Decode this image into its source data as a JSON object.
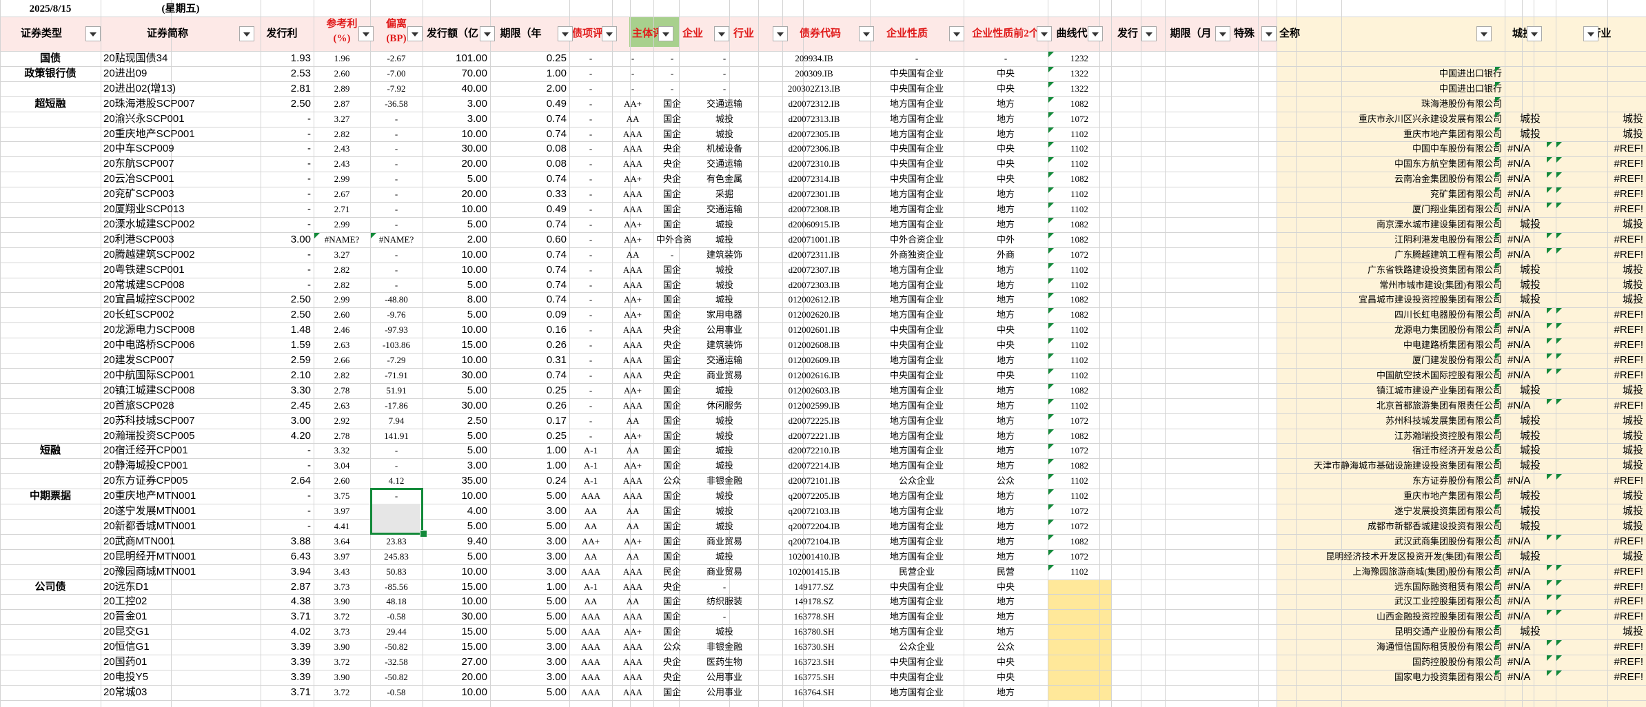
{
  "date_label": "2025/8/15",
  "weekday_label": "(星期五)",
  "headers": [
    "证券类型",
    "证券简称",
    "发行利",
    "参考利率(%)",
    "偏离(BP)",
    "发行额（亿",
    "期限（年",
    "债项评级",
    "主体评级",
    "企业",
    "行业",
    "债券代码",
    "企业性质",
    "企业性质前2个",
    "曲线代",
    "发行",
    "期限（月",
    "特殊",
    "全称",
    "城投",
    "行业"
  ],
  "header_ref_top": "参考利",
  "header_ref_bottom": "(%)",
  "header_dev_top": "偏离",
  "header_dev_bottom": "(BP)",
  "categories": [
    {
      "row": 0,
      "label": "国债"
    },
    {
      "row": 1,
      "label": "政策银行债"
    },
    {
      "row": 3,
      "label": "超短融"
    },
    {
      "row": 26,
      "label": "短融"
    },
    {
      "row": 29,
      "label": "中期票据"
    },
    {
      "row": 35,
      "label": "公司债"
    }
  ],
  "rows": [
    [
      "20贴现国债34",
      "1.93",
      "1.96",
      "-2.67",
      "101.00",
      "0.25",
      "-",
      "-",
      "-",
      "-",
      "209934.IB",
      "-",
      "-",
      "1232",
      "",
      "",
      ""
    ],
    [
      "20进出09",
      "2.53",
      "2.60",
      "-7.00",
      "70.00",
      "1.00",
      "-",
      "-",
      "-",
      "-",
      "200309.IB",
      "中央国有企业",
      "中央",
      "1322",
      "中国进出口银行",
      "",
      ""
    ],
    [
      "20进出02(增13)",
      "2.81",
      "2.89",
      "-7.92",
      "40.00",
      "2.00",
      "-",
      "-",
      "-",
      "-",
      "200302Z13.IB",
      "中央国有企业",
      "中央",
      "1322",
      "中国进出口银行",
      "",
      ""
    ],
    [
      "20珠海港股SCP007",
      "2.50",
      "2.87",
      "-36.58",
      "3.00",
      "0.49",
      "-",
      "AA+",
      "国企",
      "交通运输",
      "d20072312.IB",
      "地方国有企业",
      "地方",
      "1082",
      "珠海港股份有限公司",
      "",
      ""
    ],
    [
      "20渝兴永SCP001",
      "-",
      "3.27",
      "-",
      "3.00",
      "0.74",
      "-",
      "AA",
      "国企",
      "城投",
      "d20072313.IB",
      "地方国有企业",
      "地方",
      "1072",
      "重庆市永川区兴永建设发展有限公司",
      "城投",
      "城投"
    ],
    [
      "20重庆地产SCP001",
      "-",
      "2.82",
      "-",
      "10.00",
      "0.74",
      "-",
      "AAA",
      "国企",
      "城投",
      "d20072305.IB",
      "地方国有企业",
      "地方",
      "1102",
      "重庆市地产集团有限公司",
      "城投",
      "城投"
    ],
    [
      "20中车SCP009",
      "-",
      "2.43",
      "-",
      "30.00",
      "0.08",
      "-",
      "AAA",
      "央企",
      "机械设备",
      "d20072306.IB",
      "中央国有企业",
      "中央",
      "1102",
      "中国中车股份有限公司",
      "#N/A",
      "#REF!"
    ],
    [
      "20东航SCP007",
      "-",
      "2.43",
      "-",
      "20.00",
      "0.08",
      "-",
      "AAA",
      "央企",
      "交通运输",
      "d20072310.IB",
      "中央国有企业",
      "中央",
      "1102",
      "中国东方航空集团有限公司",
      "#N/A",
      "#REF!"
    ],
    [
      "20云冶SCP001",
      "-",
      "2.99",
      "-",
      "5.00",
      "0.74",
      "-",
      "AA+",
      "央企",
      "有色金属",
      "d20072314.IB",
      "中央国有企业",
      "中央",
      "1082",
      "云南冶金集团股份有限公司",
      "#N/A",
      "#REF!"
    ],
    [
      "20兖矿SCP003",
      "-",
      "2.67",
      "-",
      "20.00",
      "0.33",
      "-",
      "AAA",
      "国企",
      "采掘",
      "d20072301.IB",
      "地方国有企业",
      "地方",
      "1102",
      "兖矿集团有限公司",
      "#N/A",
      "#REF!"
    ],
    [
      "20厦翔业SCP013",
      "-",
      "2.71",
      "-",
      "10.00",
      "0.49",
      "-",
      "AAA",
      "国企",
      "交通运输",
      "d20072308.IB",
      "地方国有企业",
      "地方",
      "1102",
      "厦门翔业集团有限公司",
      "#N/A",
      "#REF!"
    ],
    [
      "20溧水城建SCP002",
      "-",
      "2.99",
      "-",
      "5.00",
      "0.74",
      "-",
      "AA+",
      "国企",
      "城投",
      "d20060915.IB",
      "地方国有企业",
      "地方",
      "1082",
      "南京溧水城市建设集团有限公司",
      "城投",
      "城投"
    ],
    [
      "20利港SCP003",
      "3.00",
      "#NAME?",
      "#NAME?",
      "2.00",
      "0.60",
      "-",
      "AA+",
      "中外合资",
      "城投",
      "d20071001.IB",
      "中外合资企业",
      "中外",
      "1082",
      "江阴利港发电股份有限公司",
      "#N/A",
      "#REF!"
    ],
    [
      "20腾越建筑SCP002",
      "-",
      "3.27",
      "-",
      "10.00",
      "0.74",
      "-",
      "AA",
      "-",
      "建筑装饰",
      "d20072311.IB",
      "外商独资企业",
      "外商",
      "1072",
      "广东腾越建筑工程有限公司",
      "#N/A",
      "#REF!"
    ],
    [
      "20粤铁建SCP001",
      "-",
      "2.82",
      "-",
      "10.00",
      "0.74",
      "-",
      "AAA",
      "国企",
      "城投",
      "d20072307.IB",
      "地方国有企业",
      "地方",
      "1102",
      "广东省铁路建设投资集团有限公司",
      "城投",
      "城投"
    ],
    [
      "20常城建SCP008",
      "-",
      "2.82",
      "-",
      "5.00",
      "0.74",
      "-",
      "AAA",
      "国企",
      "城投",
      "d20072303.IB",
      "地方国有企业",
      "地方",
      "1102",
      "常州市城市建设(集团)有限公司",
      "城投",
      "城投"
    ],
    [
      "20宜昌城控SCP002",
      "2.50",
      "2.99",
      "-48.80",
      "8.00",
      "0.74",
      "-",
      "AA+",
      "国企",
      "城投",
      "012002612.IB",
      "地方国有企业",
      "地方",
      "1082",
      "宜昌城市建设投资控股集团有限公司",
      "城投",
      "城投"
    ],
    [
      "20长虹SCP002",
      "2.50",
      "2.60",
      "-9.76",
      "5.00",
      "0.09",
      "-",
      "AA+",
      "国企",
      "家用电器",
      "012002620.IB",
      "地方国有企业",
      "地方",
      "1082",
      "四川长虹电器股份有限公司",
      "#N/A",
      "#REF!"
    ],
    [
      "20龙源电力SCP008",
      "1.48",
      "2.46",
      "-97.93",
      "10.00",
      "0.16",
      "-",
      "AAA",
      "央企",
      "公用事业",
      "012002601.IB",
      "中央国有企业",
      "中央",
      "1102",
      "龙源电力集团股份有限公司",
      "#N/A",
      "#REF!"
    ],
    [
      "20中电路桥SCP006",
      "1.59",
      "2.63",
      "-103.86",
      "15.00",
      "0.26",
      "-",
      "AAA",
      "央企",
      "建筑装饰",
      "012002608.IB",
      "中央国有企业",
      "中央",
      "1102",
      "中电建路桥集团有限公司",
      "#N/A",
      "#REF!"
    ],
    [
      "20建发SCP007",
      "2.59",
      "2.66",
      "-7.29",
      "10.00",
      "0.31",
      "-",
      "AAA",
      "国企",
      "交通运输",
      "012002609.IB",
      "地方国有企业",
      "地方",
      "1102",
      "厦门建发股份有限公司",
      "#N/A",
      "#REF!"
    ],
    [
      "20中航国际SCP001",
      "2.10",
      "2.82",
      "-71.91",
      "30.00",
      "0.74",
      "-",
      "AAA",
      "央企",
      "商业贸易",
      "012002616.IB",
      "中央国有企业",
      "中央",
      "1102",
      "中国航空技术国际控股有限公司",
      "#N/A",
      "#REF!"
    ],
    [
      "20镇江城建SCP008",
      "3.30",
      "2.78",
      "51.91",
      "5.00",
      "0.25",
      "-",
      "AA+",
      "国企",
      "城投",
      "012002603.IB",
      "地方国有企业",
      "地方",
      "1082",
      "镇江城市建设产业集团有限公司",
      "城投",
      "城投"
    ],
    [
      "20首旅SCP028",
      "2.45",
      "2.63",
      "-17.86",
      "30.00",
      "0.26",
      "-",
      "AAA",
      "国企",
      "休闲服务",
      "012002599.IB",
      "地方国有企业",
      "地方",
      "1102",
      "北京首都旅游集团有限责任公司",
      "#N/A",
      "#REF!"
    ],
    [
      "20苏科技城SCP007",
      "3.00",
      "2.92",
      "7.94",
      "2.50",
      "0.17",
      "-",
      "AA",
      "国企",
      "城投",
      "d20072225.IB",
      "地方国有企业",
      "地方",
      "1072",
      "苏州科技城发展集团有限公司",
      "城投",
      "城投"
    ],
    [
      "20瀚瑞投资SCP005",
      "4.20",
      "2.78",
      "141.91",
      "5.00",
      "0.25",
      "-",
      "AA+",
      "国企",
      "城投",
      "d20072221.IB",
      "地方国有企业",
      "地方",
      "1082",
      "江苏瀚瑞投资控股有限公司",
      "城投",
      "城投"
    ],
    [
      "20宿迁经开CP001",
      "-",
      "3.32",
      "-",
      "5.00",
      "1.00",
      "A-1",
      "AA",
      "国企",
      "城投",
      "d20072210.IB",
      "地方国有企业",
      "地方",
      "1072",
      "宿迁市经济开发总公司",
      "城投",
      "城投"
    ],
    [
      "20静海城投CP001",
      "-",
      "3.04",
      "-",
      "3.00",
      "1.00",
      "A-1",
      "AA+",
      "国企",
      "城投",
      "d20072214.IB",
      "地方国有企业",
      "地方",
      "1082",
      "天津市静海城市基础设施建设投资集团有限公司",
      "城投",
      "城投"
    ],
    [
      "20东方证券CP005",
      "2.64",
      "2.60",
      "4.12",
      "35.00",
      "0.24",
      "A-1",
      "AAA",
      "公众",
      "非银金融",
      "d20072101.IB",
      "公众企业",
      "公众",
      "1102",
      "东方证券股份有限公司",
      "#N/A",
      "#REF!"
    ],
    [
      "20重庆地产MTN001",
      "-",
      "3.75",
      "-",
      "10.00",
      "5.00",
      "AAA",
      "AAA",
      "国企",
      "城投",
      "q20072205.IB",
      "地方国有企业",
      "地方",
      "1102",
      "重庆市地产集团有限公司",
      "城投",
      "城投"
    ],
    [
      "20遂宁发展MTN001",
      "-",
      "3.97",
      "-",
      "4.00",
      "3.00",
      "AA",
      "AA",
      "国企",
      "城投",
      "q20072103.IB",
      "地方国有企业",
      "地方",
      "1072",
      "遂宁发展投资集团有限公司",
      "城投",
      "城投"
    ],
    [
      "20新都香城MTN001",
      "-",
      "4.41",
      "-",
      "5.00",
      "5.00",
      "AA",
      "AA",
      "国企",
      "城投",
      "q20072204.IB",
      "地方国有企业",
      "地方",
      "1072",
      "成都市新都香城建设投资有限公司",
      "城投",
      "城投"
    ],
    [
      "20武商MTN001",
      "3.88",
      "3.64",
      "23.83",
      "9.40",
      "3.00",
      "AA+",
      "AA+",
      "国企",
      "商业贸易",
      "q20072104.IB",
      "地方国有企业",
      "地方",
      "1082",
      "武汉武商集团股份有限公司",
      "#N/A",
      "#REF!"
    ],
    [
      "20昆明经开MTN001",
      "6.43",
      "3.97",
      "245.83",
      "5.00",
      "3.00",
      "AA",
      "AA",
      "国企",
      "城投",
      "102001410.IB",
      "地方国有企业",
      "地方",
      "1072",
      "昆明经济技术开发区投资开发(集团)有限公司",
      "城投",
      "城投"
    ],
    [
      "20豫园商城MTN001",
      "3.94",
      "3.43",
      "50.83",
      "10.00",
      "3.00",
      "AAA",
      "AAA",
      "民企",
      "商业贸易",
      "102001415.IB",
      "民营企业",
      "民营",
      "1102",
      "上海豫园旅游商城(集团)股份有限公司",
      "#N/A",
      "#REF!"
    ],
    [
      "20远东D1",
      "2.87",
      "3.73",
      "-85.56",
      "15.00",
      "1.00",
      "A-1",
      "AAA",
      "央企",
      "-",
      "149177.SZ",
      "中央国有企业",
      "中央",
      "",
      "远东国际融资租赁有限公司",
      "#N/A",
      "#REF!"
    ],
    [
      "20工控02",
      "4.38",
      "3.90",
      "48.18",
      "10.00",
      "5.00",
      "AA",
      "AA",
      "国企",
      "纺织服装",
      "149178.SZ",
      "地方国有企业",
      "地方",
      "",
      "武汉工业控股集团有限公司",
      "#N/A",
      "#REF!"
    ],
    [
      "20晋金01",
      "3.71",
      "3.72",
      "-0.58",
      "30.00",
      "5.00",
      "AAA",
      "AAA",
      "国企",
      "-",
      "163778.SH",
      "地方国有企业",
      "地方",
      "",
      "山西金融投资控股集团有限公司",
      "#N/A",
      "#REF!"
    ],
    [
      "20昆交G1",
      "4.02",
      "3.73",
      "29.44",
      "15.00",
      "5.00",
      "AAA",
      "AA+",
      "国企",
      "城投",
      "163780.SH",
      "地方国有企业",
      "地方",
      "",
      "昆明交通产业股份有限公司",
      "城投",
      "城投"
    ],
    [
      "20恒信G1",
      "3.39",
      "3.90",
      "-50.82",
      "15.00",
      "3.00",
      "AAA",
      "AAA",
      "公众",
      "非银金融",
      "163730.SH",
      "公众企业",
      "公众",
      "",
      "海通恒信国际租赁股份有限公司",
      "#N/A",
      "#REF!"
    ],
    [
      "20国药01",
      "3.39",
      "3.72",
      "-32.58",
      "27.00",
      "3.00",
      "AAA",
      "AAA",
      "央企",
      "医药生物",
      "163723.SH",
      "中央国有企业",
      "中央",
      "",
      "国药控股股份有限公司",
      "#N/A",
      "#REF!"
    ],
    [
      "20电投Y5",
      "3.39",
      "3.90",
      "-50.82",
      "20.00",
      "3.00",
      "AAA",
      "AAA",
      "央企",
      "公用事业",
      "163775.SH",
      "中央国有企业",
      "中央",
      "",
      "国家电力投资集团有限公司",
      "#N/A",
      "#REF!"
    ],
    [
      "20常城03",
      "3.71",
      "3.72",
      "-0.58",
      "10.00",
      "5.00",
      "AAA",
      "AAA",
      "国企",
      "公用事业",
      "163764.SH",
      "地方国有企业",
      "地方",
      "",
      "",
      "",
      ""
    ]
  ],
  "colors": {
    "header_fill": "#fde9e7",
    "rating_fill": "#a8d08d",
    "fullname_fill": "#fef3d9",
    "curve_yellow": "#ffe89a",
    "grid": "#d4d4d4",
    "accent_green": "#138a3a",
    "red_text": "#e01b1b"
  }
}
